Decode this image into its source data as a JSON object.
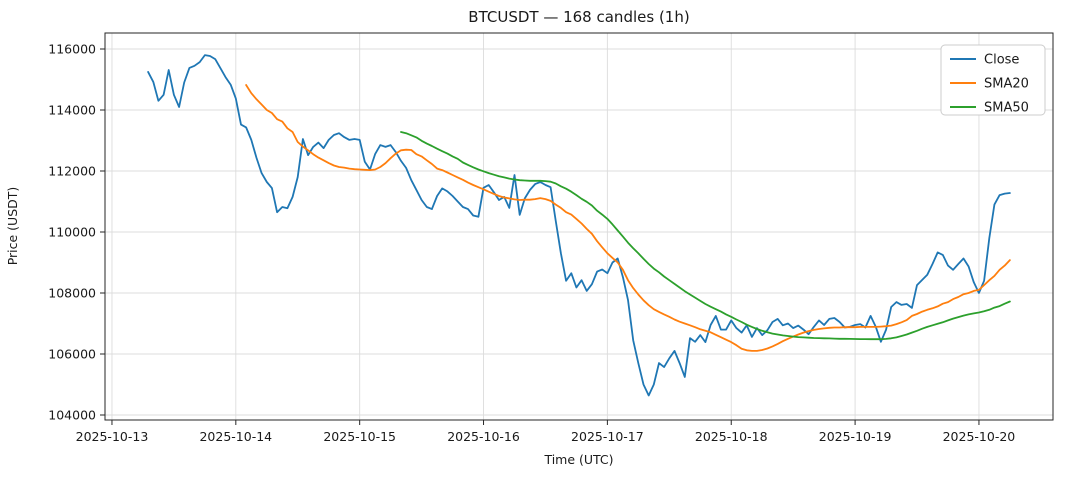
{
  "chart_data": {
    "type": "line",
    "title": "BTCUSDT — 168 candles (1h)",
    "xlabel": "Time (UTC)",
    "ylabel": "Price (USDT)",
    "legend_position": "upper right",
    "grid": true,
    "x_unit": "hours, candle 0 ≈ 2025-10-13 07:00 UTC",
    "x_ticks": [
      {
        "label": "2025-10-13",
        "hour": -7
      },
      {
        "label": "2025-10-14",
        "hour": 17
      },
      {
        "label": "2025-10-15",
        "hour": 41
      },
      {
        "label": "2025-10-16",
        "hour": 65
      },
      {
        "label": "2025-10-17",
        "hour": 89
      },
      {
        "label": "2025-10-18",
        "hour": 113
      },
      {
        "label": "2025-10-19",
        "hour": 137
      },
      {
        "label": "2025-10-20",
        "hour": 161
      }
    ],
    "y_ticks": [
      104000,
      106000,
      108000,
      110000,
      112000,
      114000,
      116000
    ],
    "ylim": [
      103836,
      116525
    ],
    "xlim_hours": [
      -8.35,
      175.35
    ],
    "series": [
      {
        "name": "Close",
        "color": "#1f77b4",
        "start_index": 0,
        "values": [
          115250,
          114920,
          114300,
          114500,
          115310,
          114500,
          114100,
          114900,
          115380,
          115450,
          115570,
          115800,
          115770,
          115670,
          115380,
          115080,
          114830,
          114380,
          113520,
          113430,
          113020,
          112430,
          111930,
          111640,
          111440,
          110650,
          110820,
          110780,
          111150,
          111800,
          113050,
          112520,
          112790,
          112930,
          112750,
          113020,
          113180,
          113240,
          113110,
          113020,
          113050,
          113020,
          112300,
          112050,
          112560,
          112850,
          112790,
          112850,
          112620,
          112330,
          112100,
          111700,
          111380,
          111050,
          110820,
          110750,
          111180,
          111430,
          111330,
          111180,
          111000,
          110820,
          110750,
          110540,
          110500,
          111450,
          111540,
          111300,
          111050,
          111150,
          110790,
          111870,
          110560,
          111100,
          111380,
          111570,
          111640,
          111540,
          111470,
          110350,
          109300,
          108400,
          108650,
          108180,
          108420,
          108070,
          108290,
          108700,
          108770,
          108650,
          109000,
          109130,
          108520,
          107770,
          106450,
          105700,
          105000,
          104640,
          105000,
          105700,
          105570,
          105860,
          106100,
          105700,
          105250,
          106520,
          106400,
          106620,
          106390,
          106950,
          107250,
          106800,
          106800,
          107100,
          106850,
          106700,
          106940,
          106560,
          106850,
          106620,
          106780,
          107050,
          107150,
          106940,
          107000,
          106850,
          106930,
          106800,
          106650,
          106890,
          107100,
          106950,
          107150,
          107180,
          107050,
          106870,
          106890,
          106950,
          106980,
          106870,
          107250,
          106900,
          106400,
          106800,
          107540,
          107700,
          107610,
          107640,
          107510,
          108260,
          108430,
          108600,
          108950,
          109330,
          109250,
          108900,
          108760,
          108950,
          109130,
          108870,
          108350,
          108000,
          108400,
          109800,
          110900,
          111210,
          111260,
          111280
        ]
      },
      {
        "name": "SMA20",
        "color": "#ff7f0e",
        "start_index": 19,
        "values": [
          114820,
          114550,
          114350,
          114180,
          114000,
          113900,
          113700,
          113620,
          113400,
          113280,
          112950,
          112800,
          112680,
          112550,
          112440,
          112350,
          112260,
          112180,
          112130,
          112110,
          112080,
          112060,
          112050,
          112040,
          112030,
          112050,
          112130,
          112260,
          112420,
          112570,
          112680,
          112700,
          112690,
          112550,
          112480,
          112350,
          112230,
          112080,
          112030,
          111950,
          111870,
          111790,
          111710,
          111620,
          111540,
          111470,
          111400,
          111320,
          111250,
          111180,
          111130,
          111100,
          111070,
          111050,
          111060,
          111060,
          111080,
          111110,
          111080,
          111020,
          110900,
          110790,
          110650,
          110570,
          110430,
          110280,
          110100,
          109940,
          109700,
          109500,
          109300,
          109150,
          109000,
          108760,
          108420,
          108160,
          107950,
          107760,
          107600,
          107470,
          107380,
          107300,
          107220,
          107130,
          107060,
          107000,
          106940,
          106880,
          106810,
          106760,
          106710,
          106630,
          106550,
          106470,
          106390,
          106290,
          106170,
          106120,
          106100,
          106100,
          106130,
          106180,
          106250,
          106330,
          106420,
          106500,
          106570,
          106640,
          106700,
          106750,
          106790,
          106820,
          106840,
          106860,
          106870,
          106870,
          106880,
          106880,
          106880,
          106890,
          106890,
          106890,
          106890,
          106900,
          106910,
          106930,
          106980,
          107040,
          107110,
          107250,
          107310,
          107390,
          107450,
          107500,
          107560,
          107650,
          107700,
          107800,
          107870,
          107960,
          108000,
          108070,
          108100,
          108260,
          108420,
          108560,
          108760,
          108900,
          109080
        ]
      },
      {
        "name": "SMA50",
        "color": "#2ca02c",
        "start_index": 49,
        "values": [
          113280,
          113240,
          113170,
          113100,
          112990,
          112900,
          112820,
          112730,
          112650,
          112570,
          112480,
          112400,
          112280,
          112200,
          112120,
          112050,
          111990,
          111930,
          111880,
          111830,
          111790,
          111750,
          111720,
          111700,
          111690,
          111680,
          111680,
          111680,
          111670,
          111650,
          111590,
          111500,
          111420,
          111320,
          111210,
          111090,
          110990,
          110870,
          110700,
          110570,
          110430,
          110250,
          110050,
          109850,
          109650,
          109470,
          109300,
          109120,
          108950,
          108800,
          108680,
          108540,
          108420,
          108300,
          108180,
          108060,
          107950,
          107850,
          107740,
          107640,
          107550,
          107470,
          107390,
          107300,
          107220,
          107130,
          107050,
          106960,
          106890,
          106820,
          106760,
          106710,
          106670,
          106640,
          106610,
          106590,
          106570,
          106555,
          106545,
          106535,
          106525,
          106520,
          106515,
          106510,
          106505,
          106500,
          106498,
          106495,
          106492,
          106490,
          106488,
          106486,
          106485,
          106486,
          106495,
          106515,
          106545,
          106590,
          106640,
          106700,
          106760,
          106830,
          106890,
          106940,
          106990,
          107040,
          107100,
          107160,
          107210,
          107260,
          107300,
          107330,
          107360,
          107400,
          107450,
          107520,
          107570,
          107650,
          107720
        ]
      }
    ]
  },
  "style": {
    "grid_color": "#dcdcdc",
    "spine_color": "#262626",
    "legend_border_color": "#cccccc",
    "background": "#ffffff"
  }
}
